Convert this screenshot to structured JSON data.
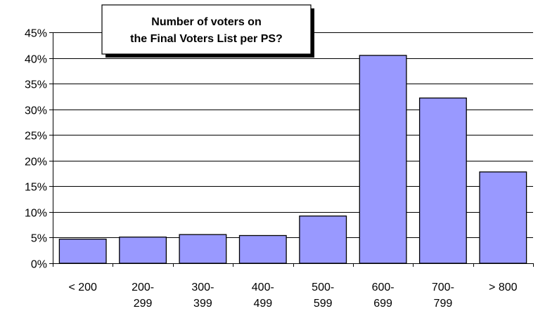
{
  "chart_data": {
    "type": "bar",
    "title_lines": [
      "Number of voters on",
      "the Final Voters List per PS?"
    ],
    "categories": [
      [
        "< 200"
      ],
      [
        "200-",
        "299"
      ],
      [
        "300-",
        "399"
      ],
      [
        "400-",
        "499"
      ],
      [
        "500-",
        "599"
      ],
      [
        "600-",
        "699"
      ],
      [
        "700-",
        "799"
      ],
      [
        "> 800"
      ]
    ],
    "values": [
      4.7,
      5.1,
      5.6,
      5.4,
      9.2,
      40.5,
      32.2,
      17.8
    ],
    "ylim": [
      0,
      45
    ],
    "yticks": [
      0,
      5,
      10,
      15,
      20,
      25,
      30,
      35,
      40,
      45
    ],
    "ytick_labels": [
      "0%",
      "5%",
      "10%",
      "15%",
      "20%",
      "25%",
      "30%",
      "35%",
      "40%",
      "45%"
    ],
    "grid": true,
    "legend": false,
    "colors": {
      "bar_fill": "#9999ff",
      "bar_stroke": "#000000",
      "grid": "#000000"
    }
  }
}
